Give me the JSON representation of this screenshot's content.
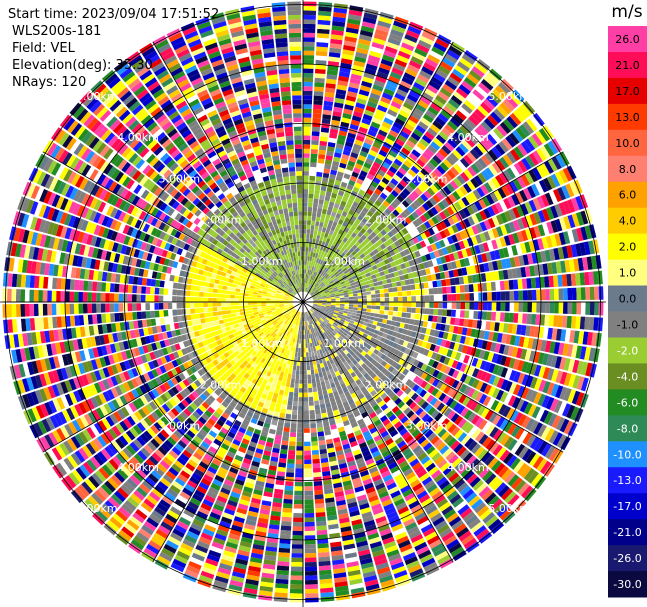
{
  "header": {
    "start_time": "Start time: 2023/09/04 17:51:52",
    "station": "WLS200s-181",
    "field": "Field: VEL",
    "elevation": "Elevation(deg): 35.30",
    "nrays": "NRays: 120"
  },
  "chart_data": {
    "type": "heatmap",
    "projection": "polar-ppi",
    "field": "VEL",
    "unit": "m/s",
    "n_rays": 120,
    "range_rings_km": [
      1,
      2,
      3,
      4,
      5
    ],
    "range_ring_labels": [
      "1.00km",
      "2.00km",
      "3.00km",
      "4.00km",
      "5.00km"
    ],
    "colorbar": {
      "title": "m/s",
      "tick_labels": [
        "26.0",
        "21.0",
        "17.0",
        "13.0",
        "10.0",
        "8.0",
        "6.0",
        "4.0",
        "2.0",
        "1.0",
        "0.0",
        "-1.0",
        "-2.0",
        "-4.0",
        "-6.0",
        "-8.0",
        "-10.0",
        "-13.0",
        "-17.0",
        "-21.0",
        "-26.0",
        "-30.0"
      ],
      "colors": [
        "#ff3fa5",
        "#ff0e57",
        "#e70000",
        "#ff3b00",
        "#ff6640",
        "#ff7f70",
        "#ffa200",
        "#ffcc00",
        "#ffff00",
        "#ffff80",
        "#6b7b8c",
        "#808080",
        "#9acd32",
        "#6b8e23",
        "#228b22",
        "#2e8b57",
        "#1e90ff",
        "#1a1aff",
        "#0000cd",
        "#00008b",
        "#191970",
        "#0a0a40"
      ]
    },
    "regions": [
      {
        "range_km": [
          0,
          2.0
        ],
        "sector": "north",
        "dominant_values": [
          "-1.0",
          "-2.0"
        ]
      },
      {
        "range_km": [
          0,
          2.0
        ],
        "sector": "south-west",
        "dominant_values": [
          "2.0",
          "4.0"
        ]
      },
      {
        "range_km": [
          0,
          2.0
        ],
        "sector": "east-south-east",
        "dominant_values": [
          "0.0"
        ]
      },
      {
        "range_km": [
          2.5,
          5.5
        ],
        "sector": "all",
        "dominant_values": [
          "noise"
        ]
      }
    ]
  }
}
